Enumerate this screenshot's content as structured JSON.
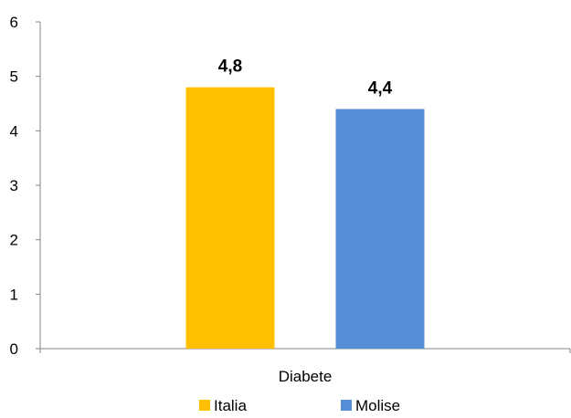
{
  "chart_data": {
    "type": "bar",
    "categories": [
      "Diabete"
    ],
    "series": [
      {
        "name": "Italia",
        "values": [
          4.8
        ],
        "value_labels": [
          "4,8"
        ],
        "color": "#FFC000"
      },
      {
        "name": "Molise",
        "values": [
          4.4
        ],
        "value_labels": [
          "4,4"
        ],
        "color": "#558ED5"
      }
    ],
    "title": "",
    "xlabel": "",
    "ylabel": "",
    "ylim": [
      0,
      6
    ],
    "yticks": [
      0,
      1,
      2,
      3,
      4,
      5,
      6
    ],
    "grid": false,
    "legend_position": "bottom"
  }
}
